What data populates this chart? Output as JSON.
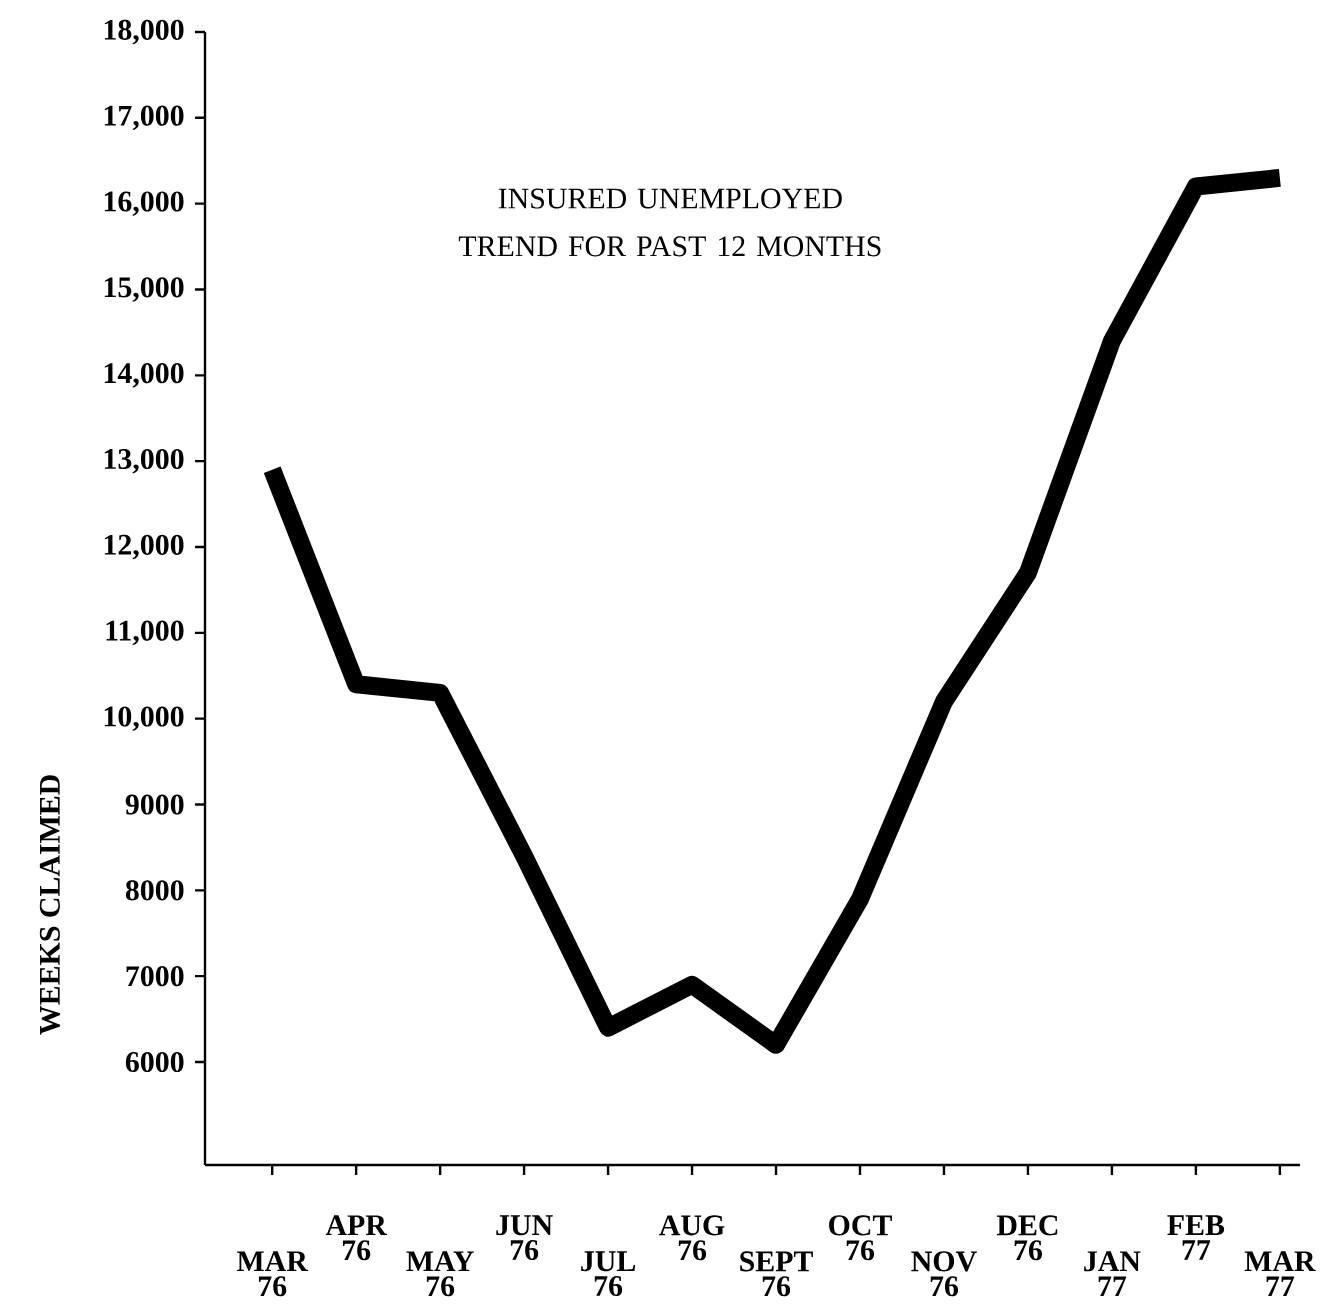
{
  "chart_data": {
    "type": "line",
    "title": "INSURED UNEMPLOYED TREND FOR PAST 12 MONTHS",
    "ylabel": "WEEKS CLAIMED",
    "categories": [
      "MAR 76",
      "APR 76",
      "MAY 76",
      "JUN 76",
      "JUL 76",
      "AUG 76",
      "SEPT 76",
      "OCT 76",
      "NOV 76",
      "DEC 76",
      "JAN 77",
      "FEB 77",
      "MAR 77"
    ],
    "values": [
      12900,
      10400,
      10300,
      8400,
      6400,
      6900,
      6200,
      7900,
      10200,
      11700,
      14400,
      16200,
      16300
    ],
    "color": "#000000",
    "ylim": [
      4800,
      18000
    ],
    "yticks": [
      6000,
      7000,
      8000,
      9000,
      {
        "value": 10000,
        "label": "10,000"
      },
      {
        "value": 11000,
        "label": "11,000"
      },
      {
        "value": 12000,
        "label": "12,000"
      },
      {
        "value": 13000,
        "label": "13,000"
      },
      {
        "value": 14000,
        "label": "14,000"
      },
      {
        "value": 15000,
        "label": "15,000"
      },
      {
        "value": 16000,
        "label": "16,000"
      },
      {
        "value": 17000,
        "label": "17,000"
      },
      {
        "value": 18000,
        "label": "18,000"
      }
    ]
  }
}
